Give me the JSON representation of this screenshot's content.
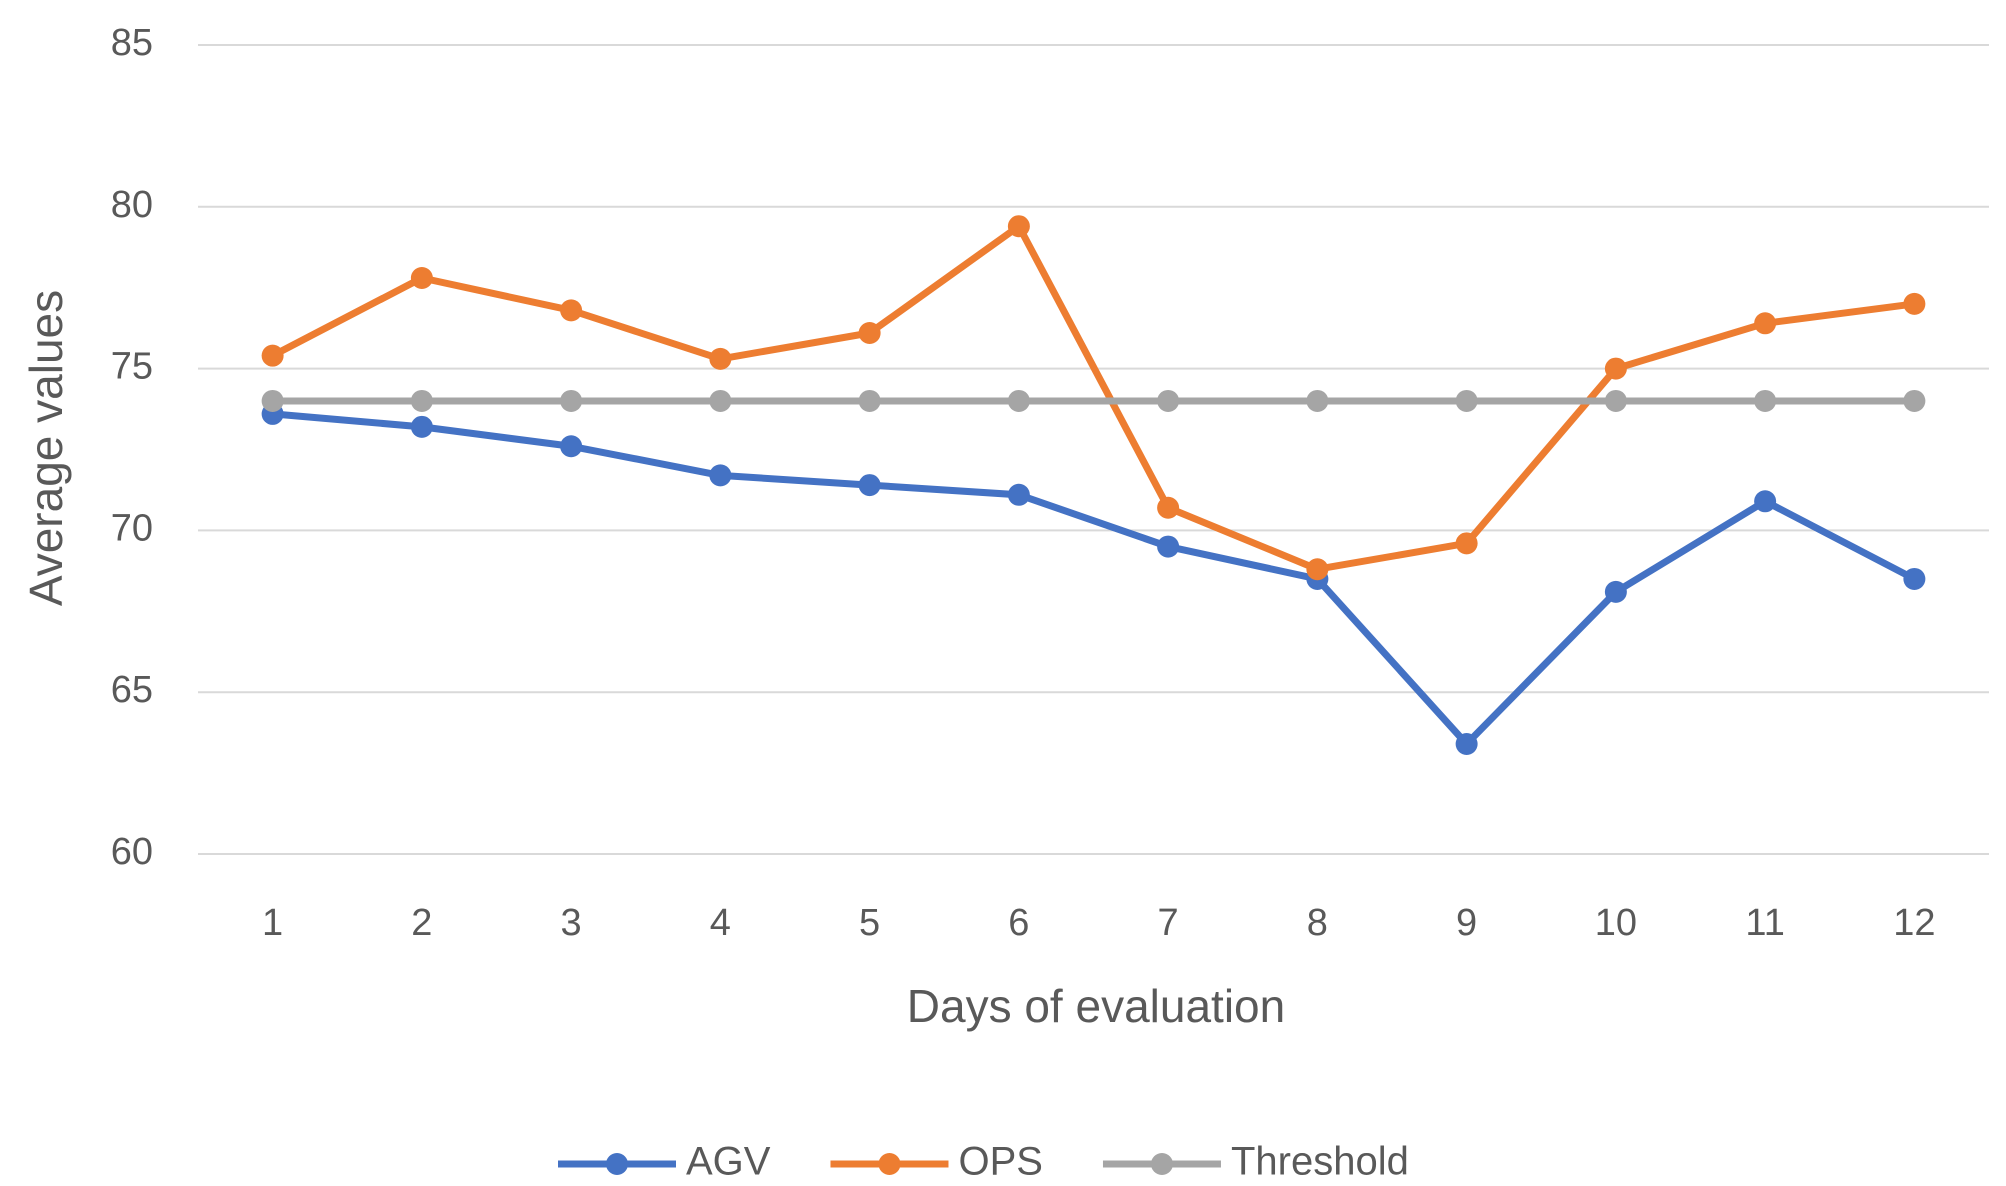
{
  "chart_data": {
    "type": "line",
    "x_label": "Days  of evaluation",
    "y_label": "Average values",
    "categories": [
      "1",
      "2",
      "3",
      "4",
      "5",
      "6",
      "7",
      "8",
      "9",
      "10",
      "11",
      "12"
    ],
    "series": [
      {
        "name": "AGV",
        "color": "#4472c4",
        "values": [
          73.6,
          73.2,
          72.6,
          71.7,
          71.4,
          71.1,
          69.5,
          68.5,
          63.4,
          68.1,
          70.9,
          68.5
        ]
      },
      {
        "name": "OPS",
        "color": "#ed7d31",
        "values": [
          75.4,
          77.8,
          76.8,
          75.3,
          76.1,
          79.4,
          70.7,
          68.8,
          69.6,
          75.0,
          76.4,
          77.0
        ]
      },
      {
        "name": "Threshold",
        "color": "#a5a5a5",
        "values": [
          74,
          74,
          74,
          74,
          74,
          74,
          74,
          74,
          74,
          74,
          74,
          74
        ]
      }
    ],
    "ylim": [
      60,
      85
    ],
    "yticks": [
      60,
      65,
      70,
      75,
      80,
      85
    ],
    "grid": true,
    "legend": "bottom"
  }
}
